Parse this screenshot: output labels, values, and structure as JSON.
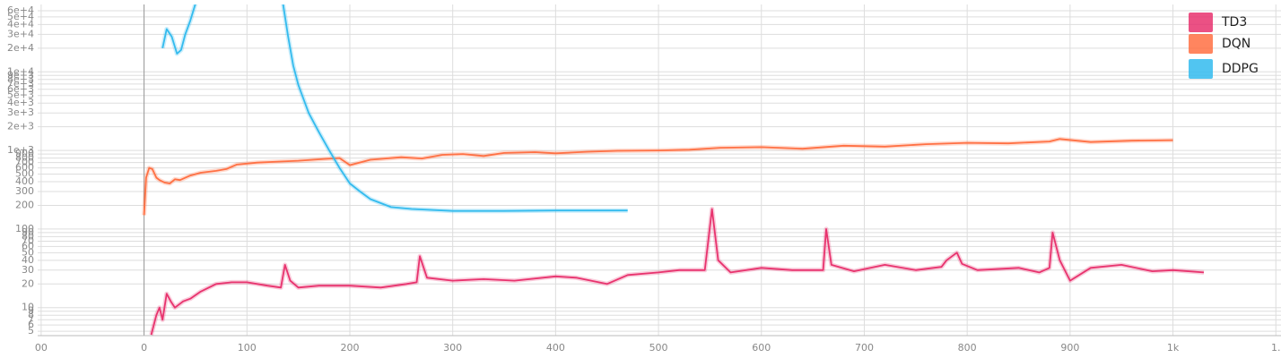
{
  "chart_data": {
    "type": "line",
    "log_y": true,
    "grid": true,
    "legend": "top-right",
    "xlim": [
      -140,
      1105
    ],
    "ylim": [
      4.4,
      72000
    ],
    "xticks": [
      {
        "value": -100,
        "label": "00"
      },
      0,
      100,
      200,
      300,
      400,
      500,
      600,
      700,
      800,
      900,
      {
        "value": 1000,
        "label": "1k"
      },
      {
        "value": 1100,
        "label": "1."
      }
    ],
    "yticks": [
      {
        "value": 60000,
        "label": "6e+4"
      },
      {
        "value": 50000,
        "label": "5e+4"
      },
      {
        "value": 40000,
        "label": "4e+4"
      },
      {
        "value": 30000,
        "label": "3e+4"
      },
      {
        "value": 20000,
        "label": "2e+4"
      },
      {
        "value": 10000,
        "label": "1e+4"
      },
      {
        "value": 9000,
        "label": "9e+3"
      },
      {
        "value": 8000,
        "label": "8e+3"
      },
      {
        "value": 7000,
        "label": "7e+3"
      },
      {
        "value": 6000,
        "label": "6e+3"
      },
      {
        "value": 5000,
        "label": "5e+3"
      },
      {
        "value": 4000,
        "label": "4e+3"
      },
      {
        "value": 3000,
        "label": "3e+3"
      },
      {
        "value": 2000,
        "label": "2e+3"
      },
      {
        "value": 1000,
        "label": "1e+3"
      },
      900,
      800,
      700,
      600,
      500,
      400,
      300,
      200,
      100,
      90,
      80,
      70,
      60,
      50,
      40,
      30,
      20,
      10,
      9,
      8,
      7,
      6,
      5
    ],
    "series": [
      {
        "name": "TD3",
        "color": "#e8336e",
        "x": [
          7,
          12,
          15,
          18,
          22,
          26,
          30,
          38,
          45,
          55,
          70,
          85,
          100,
          120,
          133,
          137,
          142,
          150,
          170,
          200,
          230,
          255,
          265,
          268,
          275,
          300,
          330,
          360,
          400,
          420,
          450,
          470,
          500,
          520,
          545,
          552,
          558,
          570,
          600,
          630,
          660,
          663,
          668,
          690,
          720,
          750,
          775,
          780,
          790,
          795,
          810,
          850,
          870,
          880,
          883,
          890,
          900,
          920,
          950,
          980,
          1000,
          1030
        ],
        "values": [
          4.5,
          8,
          10,
          7,
          15,
          12,
          10,
          12,
          13,
          16,
          20,
          21,
          21,
          19,
          18,
          35,
          22,
          18,
          19,
          19,
          18,
          20,
          21,
          45,
          24,
          22,
          23,
          22,
          25,
          24,
          20,
          26,
          28,
          30,
          30,
          180,
          40,
          28,
          32,
          30,
          30,
          100,
          35,
          29,
          35,
          30,
          33,
          40,
          50,
          36,
          30,
          32,
          28,
          32,
          90,
          40,
          22,
          32,
          35,
          29,
          30,
          28
        ]
      },
      {
        "name": "DQN",
        "color": "#ff7043",
        "x": [
          0,
          2,
          5,
          8,
          12,
          15,
          20,
          25,
          30,
          35,
          45,
          55,
          70,
          80,
          90,
          110,
          130,
          150,
          175,
          190,
          200,
          220,
          250,
          270,
          290,
          310,
          330,
          350,
          380,
          400,
          430,
          460,
          500,
          530,
          560,
          600,
          640,
          680,
          720,
          760,
          800,
          840,
          880,
          890,
          920,
          960,
          1000
        ],
        "values": [
          150,
          450,
          600,
          580,
          450,
          420,
          390,
          380,
          430,
          420,
          480,
          520,
          550,
          580,
          660,
          700,
          720,
          740,
          780,
          800,
          650,
          760,
          820,
          790,
          880,
          900,
          850,
          930,
          950,
          920,
          960,
          990,
          1000,
          1020,
          1080,
          1100,
          1050,
          1150,
          1120,
          1200,
          1250,
          1230,
          1300,
          1400,
          1280,
          1330,
          1350
        ]
      },
      {
        "name": "DDPG",
        "color": "#33bbee",
        "x": [
          18,
          22,
          27,
          32,
          36,
          40,
          45,
          52,
          90,
          134,
          140,
          145,
          150,
          160,
          170,
          180,
          190,
          200,
          210,
          220,
          240,
          260,
          300,
          350,
          400,
          470
        ],
        "values": [
          20000,
          35000,
          28000,
          17000,
          19000,
          30000,
          45000,
          90000,
          null,
          90000,
          28000,
          12000,
          6800,
          3000,
          1700,
          1000,
          600,
          380,
          300,
          240,
          190,
          180,
          170,
          170,
          172,
          172
        ]
      }
    ]
  }
}
